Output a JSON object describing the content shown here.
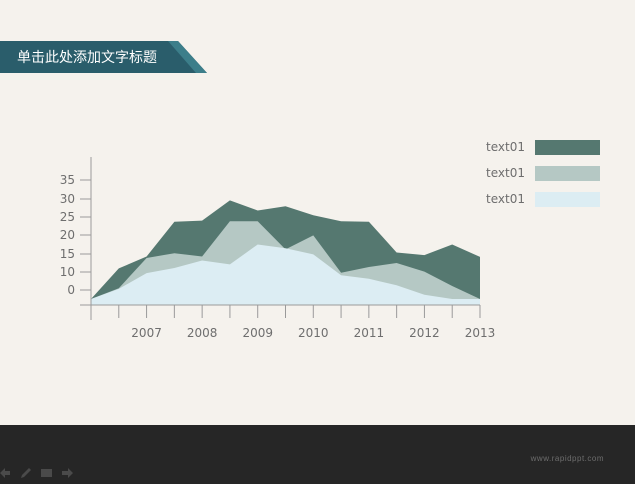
{
  "slide": {
    "title": "单击此处添加文字标题"
  },
  "chart_data": {
    "type": "area",
    "stacked": false,
    "x": [
      "",
      "",
      "2007",
      "",
      "2008",
      "",
      "2009",
      "",
      "2010",
      "",
      "2011",
      "",
      "2012",
      "",
      "2013"
    ],
    "x_tick_labels": [
      "2007",
      "2008",
      "2009",
      "2010",
      "2011",
      "2012",
      "2013"
    ],
    "y_tick_labels": [
      "0",
      "10",
      "15",
      "20",
      "25",
      "30",
      "35"
    ],
    "series": [
      {
        "name": "text01",
        "color": "#557870",
        "values": [
          -2.5,
          6,
          9.3,
          18.7,
          19,
          24.6,
          21.8,
          23,
          20.5,
          18.8,
          18.7,
          10.4,
          9.7,
          12.5,
          9.2
        ]
      },
      {
        "name": "text01",
        "color": "#b5c8c4",
        "values": [
          -2.5,
          0.5,
          8.9,
          10.2,
          9.3,
          18.8,
          18.8,
          11.2,
          14.9,
          4.8,
          6.4,
          7.5,
          5.1,
          1.1,
          -2.5
        ]
      },
      {
        "name": "text01",
        "color": "#dcedf3",
        "values": [
          -2.5,
          0.3,
          4.7,
          6.1,
          8.2,
          7.1,
          12.5,
          11.5,
          9.9,
          4.1,
          3.1,
          1.3,
          -1.3,
          -2.5,
          -2.5
        ]
      }
    ],
    "legend": "right",
    "grid": false
  },
  "footer": {
    "watermark": "www.rapidppt.com"
  }
}
